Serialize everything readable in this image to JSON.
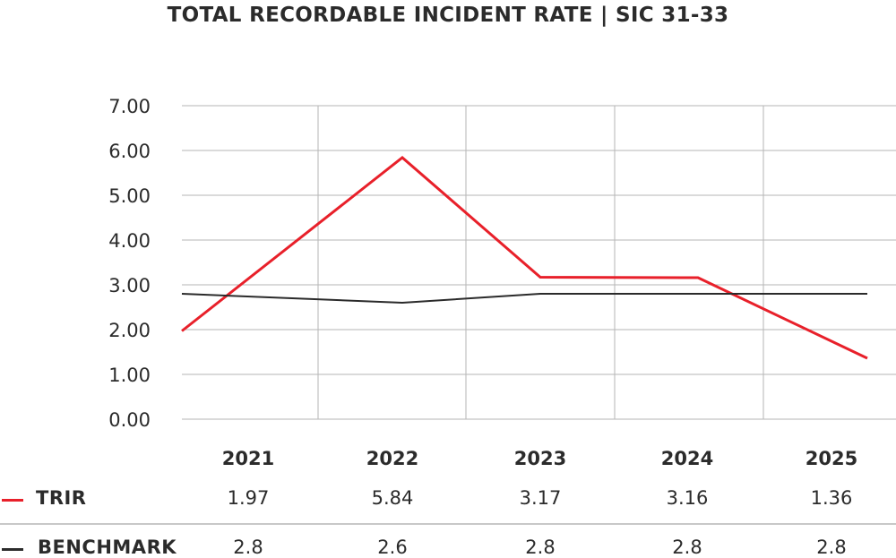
{
  "chart_data": {
    "type": "line",
    "title": "TOTAL RECORDABLE INCIDENT RATE  |  SIC 31-33",
    "categories": [
      "2021",
      "2022",
      "2023",
      "2024",
      "2025"
    ],
    "ylim": [
      0,
      7
    ],
    "yticks": [
      "0.00",
      "1.00",
      "2.00",
      "3.00",
      "4.00",
      "5.00",
      "6.00",
      "7.00"
    ],
    "grid": true,
    "legend": "bottom-left table",
    "series": [
      {
        "name": "TRIR",
        "color": "#e8202a",
        "values": [
          1.97,
          5.84,
          3.17,
          3.16,
          1.36
        ],
        "labels": [
          "1.97",
          "5.84",
          "3.17",
          "3.16",
          "1.36"
        ]
      },
      {
        "name": "BENCHMARK",
        "color": "#2b2b2b",
        "values": [
          2.8,
          2.6,
          2.8,
          2.8,
          2.8
        ],
        "labels": [
          "2.8",
          "2.6",
          "2.8",
          "2.8",
          "2.8"
        ]
      }
    ]
  }
}
